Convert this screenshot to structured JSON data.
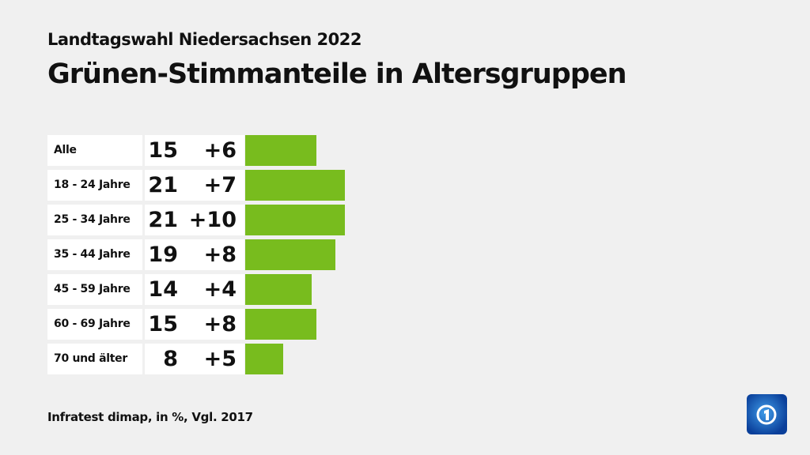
{
  "chart_data": {
    "type": "bar",
    "subtitle": "Landtagswahl Niedersachsen 2022",
    "title": "Grünen-Stimmanteile in Altersgruppen",
    "categories": [
      "Alle",
      "18 - 24 Jahre",
      "25 - 34 Jahre",
      "35 - 44 Jahre",
      "45 - 59 Jahre",
      "60 - 69 Jahre",
      "70 und älter"
    ],
    "values": [
      15,
      21,
      21,
      19,
      14,
      15,
      8
    ],
    "changes": [
      "+6",
      "+7",
      "+10",
      "+8",
      "+4",
      "+8",
      "+5"
    ],
    "bar_color": "#78bc1e",
    "source": "Infratest dimap, in %, Vgl. 2017"
  },
  "logo": "tagesschau-logo"
}
